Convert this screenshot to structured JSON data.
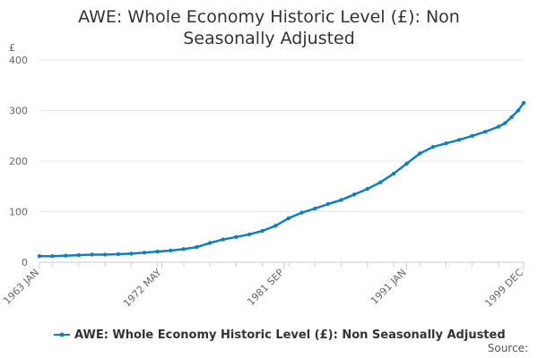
{
  "chart_data": {
    "type": "line",
    "title": "AWE: Whole Economy Historic Level (£): Non Seasonally Adjusted",
    "ylabel": "£",
    "xlabel": "",
    "x_range": [
      "1963 JAN",
      "1999 DEC"
    ],
    "ylim": [
      0,
      400
    ],
    "y_ticks": [
      "0",
      "100",
      "200",
      "300",
      "400"
    ],
    "x_tick_labels": [
      "1963 JAN",
      "1972 MAY",
      "1981 SEP",
      "1991 JAN",
      "1999 DEC"
    ],
    "grid": "horizontal",
    "legend_position": "bottom",
    "source_label": "Source:",
    "series": [
      {
        "name": "AWE: Whole Economy Historic Level (£): Non Seasonally Adjusted",
        "color": "#0f7fbf",
        "x": [
          "1963 JAN",
          "1964 JAN",
          "1965 JAN",
          "1966 JAN",
          "1967 JAN",
          "1968 JAN",
          "1969 JAN",
          "1970 JAN",
          "1971 JAN",
          "1972 JAN",
          "1973 JAN",
          "1974 JAN",
          "1975 JAN",
          "1976 JAN",
          "1977 JAN",
          "1978 JAN",
          "1979 JAN",
          "1980 JAN",
          "1981 JAN",
          "1982 JAN",
          "1983 JAN",
          "1984 JAN",
          "1985 JAN",
          "1986 JAN",
          "1987 JAN",
          "1988 JAN",
          "1989 JAN",
          "1990 JAN",
          "1991 JAN",
          "1992 JAN",
          "1993 JAN",
          "1994 JAN",
          "1995 JAN",
          "1996 JAN",
          "1997 JAN",
          "1998 JAN",
          "1998 JUL",
          "1999 JAN",
          "1999 JUL",
          "1999 DEC"
        ],
        "values": [
          12,
          12,
          13,
          14,
          15,
          15,
          16,
          17,
          19,
          21,
          23,
          26,
          30,
          38,
          45,
          50,
          55,
          62,
          72,
          87,
          98,
          106,
          115,
          123,
          134,
          145,
          158,
          175,
          195,
          215,
          228,
          235,
          242,
          250,
          258,
          268,
          275,
          287,
          300,
          315
        ]
      }
    ]
  }
}
